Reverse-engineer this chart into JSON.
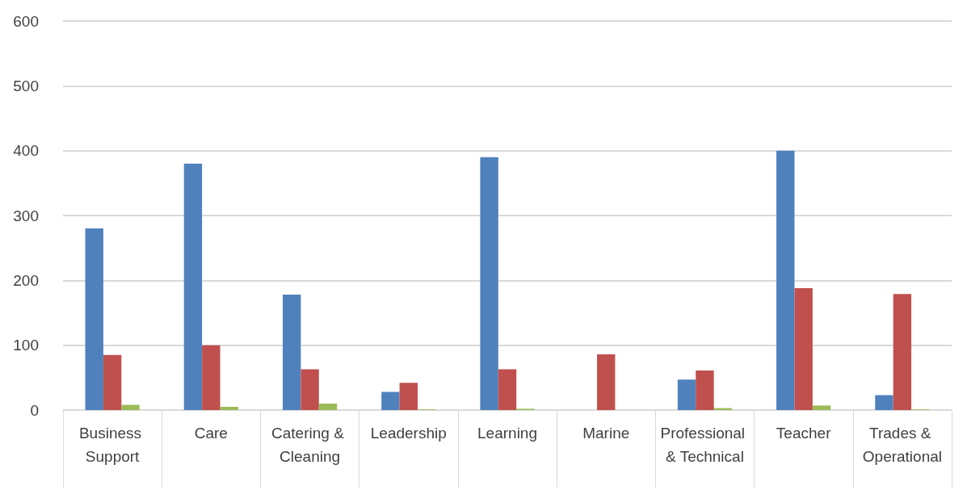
{
  "chart_data": {
    "type": "bar",
    "categories": [
      "Business Support",
      "Care",
      "Catering & Cleaning",
      "Leadership",
      "Learning",
      "Marine",
      "Professional & Technical",
      "Teacher",
      "Trades & Operational"
    ],
    "series": [
      {
        "color": "#4f81bd",
        "values": [
          280,
          380,
          178,
          28,
          390,
          0,
          47,
          400,
          23
        ]
      },
      {
        "color": "#c0504d",
        "values": [
          85,
          100,
          63,
          42,
          63,
          86,
          61,
          188,
          179
        ]
      },
      {
        "color": "#9bbb59",
        "values": [
          8,
          5,
          10,
          1,
          2,
          0,
          3,
          7,
          1
        ]
      }
    ],
    "ylim": [
      0,
      600
    ],
    "yticks": [
      0,
      100,
      200,
      300,
      400,
      500,
      600
    ],
    "grid": "y"
  }
}
